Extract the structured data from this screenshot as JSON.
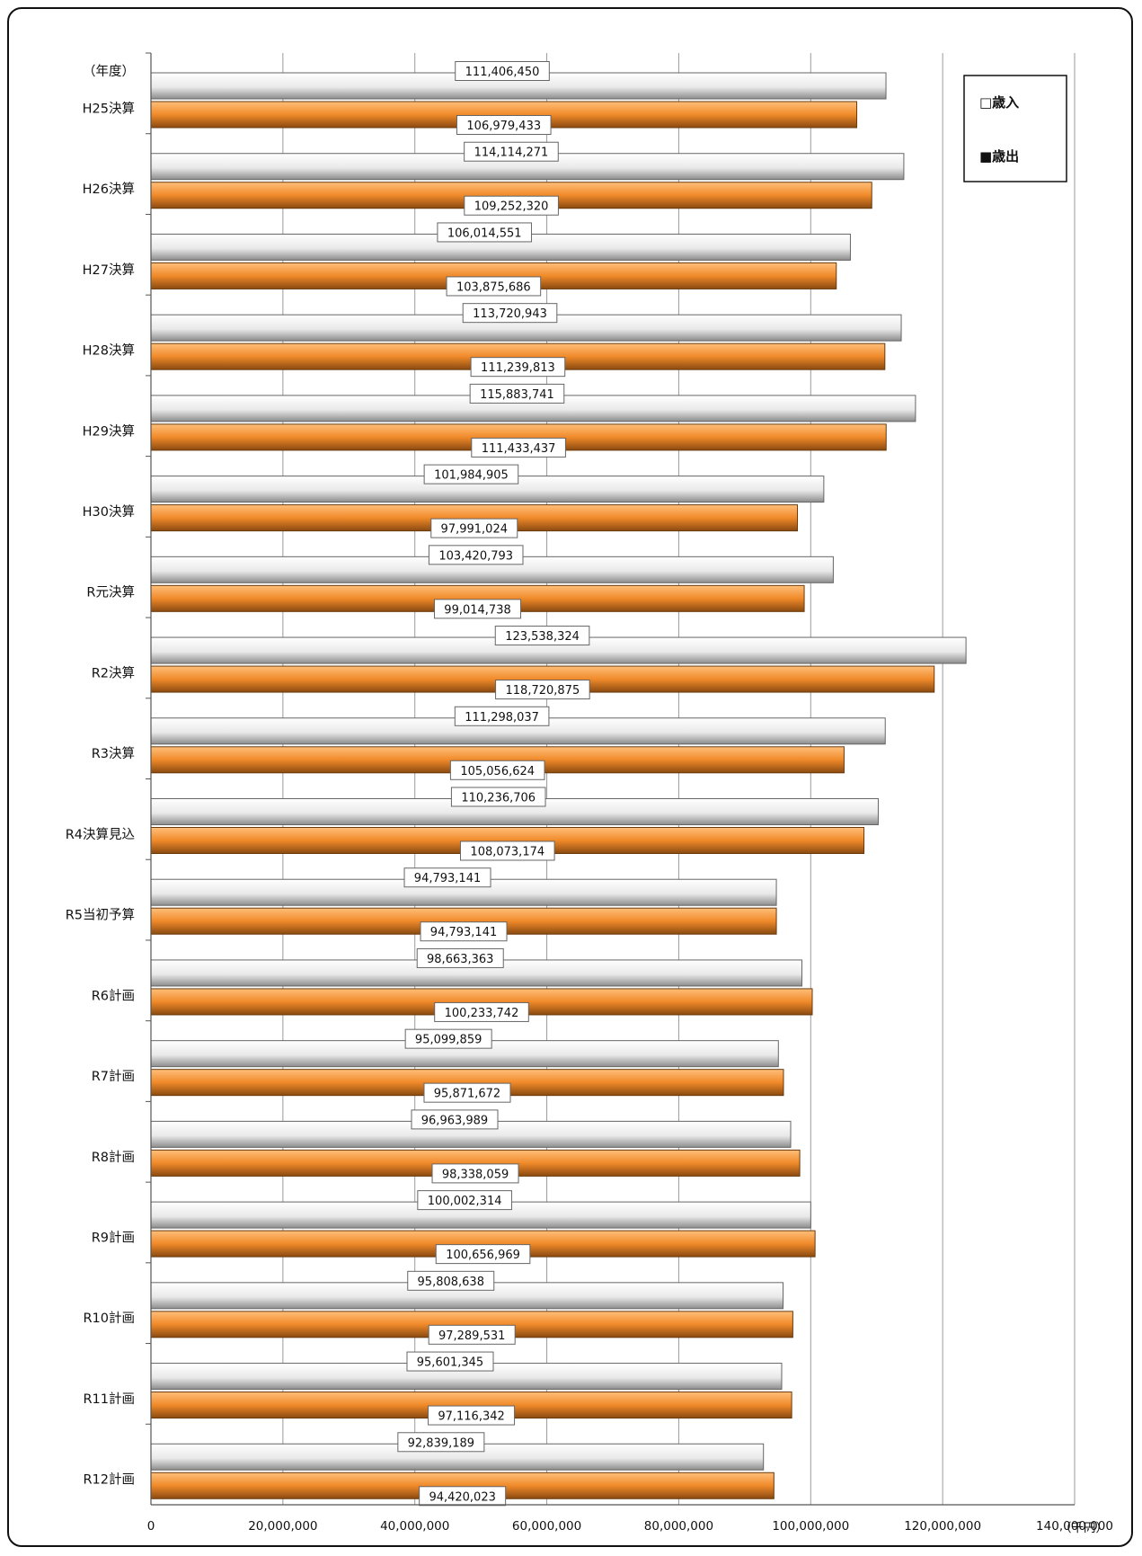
{
  "chart_data": {
    "type": "bar",
    "orientation": "horizontal",
    "y_axis_title": "（年度）",
    "unit_label": "（千円）",
    "categories": [
      "H25決算",
      "H26決算",
      "H27決算",
      "H28決算",
      "H29決算",
      "H30決算",
      "R元決算",
      "R2決算",
      "R3決算",
      "R4決算見込",
      "R5当初予算",
      "R6計画",
      "R7計画",
      "R8計画",
      "R9計画",
      "R10計画",
      "R11計画",
      "R12計画"
    ],
    "series": [
      {
        "name": "□歳入",
        "color": "#ffffff",
        "values": [
          111406450,
          114114271,
          106014551,
          113720943,
          115883741,
          101984905,
          103420793,
          123538324,
          111298037,
          110236706,
          94793141,
          98663363,
          95099859,
          96963989,
          100002314,
          95808638,
          95601345,
          92839189
        ],
        "labels": [
          "111,406,450",
          "114,114,271",
          "106,014,551",
          "113,720,943",
          "115,883,741",
          "101,984,905",
          "103,420,793",
          "123,538,324",
          "111,298,037",
          "110,236,706",
          "94,793,141",
          "98,663,363",
          "95,099,859",
          "96,963,989",
          "100,002,314",
          "95,808,638",
          "95,601,345",
          "92,839,189"
        ]
      },
      {
        "name": "■歳出",
        "color": "#ef8a2a",
        "values": [
          106979433,
          109252320,
          103875686,
          111239813,
          111433437,
          97991024,
          99014738,
          118720875,
          105056624,
          108073174,
          94793141,
          100233742,
          95871672,
          98338059,
          100656969,
          97289531,
          97116342,
          94420023
        ],
        "labels": [
          "106,979,433",
          "109,252,320",
          "103,875,686",
          "111,239,813",
          "111,433,437",
          "97,991,024",
          "99,014,738",
          "118,720,875",
          "105,056,624",
          "108,073,174",
          "94,793,141",
          "100,233,742",
          "95,871,672",
          "98,338,059",
          "100,656,969",
          "97,289,531",
          "97,116,342",
          "94,420,023"
        ]
      }
    ],
    "x_ticks": [
      "0",
      "20,000,000",
      "40,000,000",
      "60,000,000",
      "80,000,000",
      "100,000,000",
      "120,000,000",
      "140,000,000"
    ],
    "xlim": [
      0,
      140000000
    ],
    "grid": true,
    "legend_position": "top-right"
  }
}
